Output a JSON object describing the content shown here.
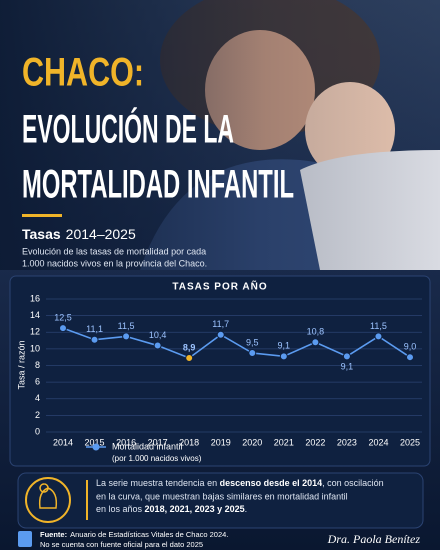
{
  "header": {
    "title_lines": [
      "CHACO:",
      "EVOLUCIÓN DE LA",
      "MORTALIDAD INFANTIL"
    ],
    "rates_label": "Tasas",
    "rates_range": "2014–2025",
    "subtitle": [
      "Evolución de las tasas de mortalidad por cada",
      "1.000 nacidos vivos en la provincia del Chaco."
    ]
  },
  "chart_data": {
    "type": "line",
    "title": "TASAS POR AÑO",
    "y_label": "Tasa / razón",
    "categories": [
      "2014",
      "2015",
      "2016",
      "2017",
      "2018",
      "2019",
      "2020",
      "2021",
      "2022",
      "2023",
      "2024",
      "2025"
    ],
    "series": [
      {
        "name": "Mortalidad infantil",
        "note": "(por 1.000 nacidos vivos)",
        "color": "#5b9bf0",
        "values": [
          12.5,
          11.1,
          11.5,
          10.4,
          8.9,
          11.7,
          9.5,
          9.1,
          10.8,
          9.1,
          11.5,
          9.0
        ],
        "value_labels": [
          "12,5",
          "11,1",
          "11,5",
          "10,4",
          "8,9",
          "11,7",
          "9,5",
          "9,1",
          "10,8",
          "9,1",
          "11,5",
          "9,0"
        ],
        "marker_colors": [
          "#5b9bf0",
          "#5b9bf0",
          "#5b9bf0",
          "#5b9bf0",
          "#f0b429",
          "#5b9bf0",
          "#5b9bf0",
          "#5b9bf0",
          "#5b9bf0",
          "#5b9bf0",
          "#5b9bf0",
          "#5b9bf0"
        ]
      }
    ],
    "ylim": [
      0,
      16
    ],
    "yticks": [
      0,
      2,
      4,
      6,
      8,
      10,
      12,
      14,
      16
    ],
    "grid": true
  },
  "note": {
    "parts": [
      "La serie muestra tendencia en ",
      "descenso desde el 2014",
      ", con oscilación",
      "en la curva, que muestran bajas similares en mortalidad infantil",
      "en los años ",
      "2018, 2021, 2023 y 2025",
      "."
    ]
  },
  "footer": {
    "source_label": "Fuente:",
    "source": "Anuario de Estadísticas Vitales de Chaco 2024.",
    "source_note": "No se cuenta con fuente oficial para el dato 2025",
    "signature": "Dra. Paola Benítez"
  }
}
